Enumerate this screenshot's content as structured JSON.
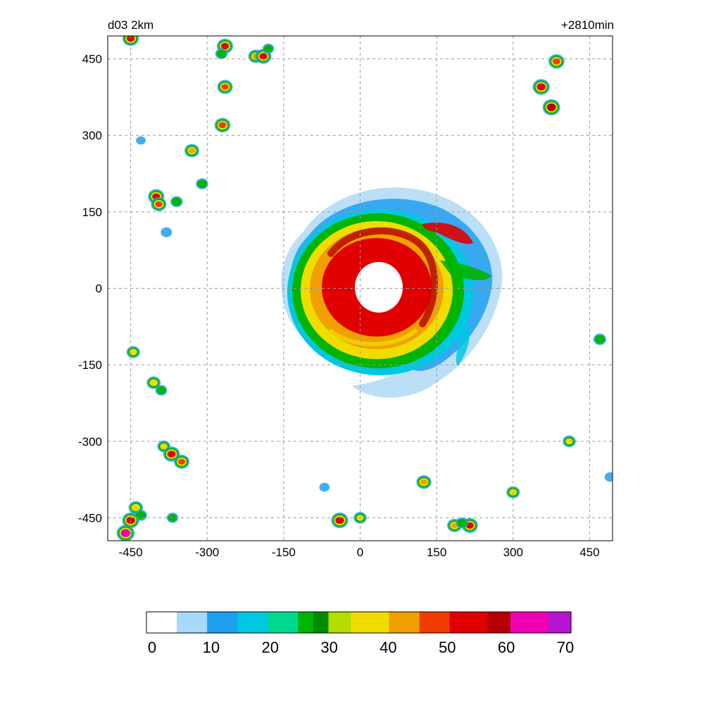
{
  "header": {
    "domain_label": "d03 2km",
    "time_label": "+2810min"
  },
  "chart_data": {
    "type": "heatmap",
    "title": "",
    "xlabel": "",
    "ylabel": "",
    "xlim": [
      -495,
      495
    ],
    "ylim": [
      -495,
      495
    ],
    "grid": true,
    "x_ticks": [
      -450,
      -300,
      -150,
      0,
      150,
      300,
      450
    ],
    "y_ticks": [
      450,
      300,
      150,
      0,
      -150,
      -300,
      -450
    ],
    "storm_center": [
      35,
      10
    ],
    "colorbar": {
      "min": 0,
      "max": 70,
      "tick_labels": [
        "0",
        "10",
        "20",
        "30",
        "40",
        "50",
        "60",
        "70"
      ],
      "stops": [
        {
          "value": 0,
          "color": "#ffffff"
        },
        {
          "value": 5,
          "color": "#a8d8f8"
        },
        {
          "value": 10,
          "color": "#1ea0f0"
        },
        {
          "value": 15,
          "color": "#00c8e0"
        },
        {
          "value": 20,
          "color": "#00d890"
        },
        {
          "value": 25,
          "color": "#00b400"
        },
        {
          "value": 27,
          "color": "#008c00"
        },
        {
          "value": 30,
          "color": "#b4dc00"
        },
        {
          "value": 34,
          "color": "#f0dc00"
        },
        {
          "value": 40,
          "color": "#f0a000"
        },
        {
          "value": 45,
          "color": "#f03c00"
        },
        {
          "value": 50,
          "color": "#e00000"
        },
        {
          "value": 56,
          "color": "#b40000"
        },
        {
          "value": 60,
          "color": "#f000b4"
        },
        {
          "value": 66,
          "color": "#b414d2"
        },
        {
          "value": 70,
          "color": "#a082f0"
        }
      ]
    },
    "cells": [
      {
        "x": -450,
        "y": -455,
        "dbz": 55
      },
      {
        "x": -440,
        "y": -430,
        "dbz": 38
      },
      {
        "x": -430,
        "y": -445,
        "dbz": 25
      },
      {
        "x": -460,
        "y": -480,
        "dbz": 60
      },
      {
        "x": -368,
        "y": -450,
        "dbz": 20
      },
      {
        "x": -385,
        "y": -310,
        "dbz": 30
      },
      {
        "x": -370,
        "y": -325,
        "dbz": 52
      },
      {
        "x": -350,
        "y": -340,
        "dbz": 45
      },
      {
        "x": -405,
        "y": -185,
        "dbz": 35
      },
      {
        "x": -390,
        "y": -200,
        "dbz": 22
      },
      {
        "x": -445,
        "y": -125,
        "dbz": 32
      },
      {
        "x": -400,
        "y": 180,
        "dbz": 50
      },
      {
        "x": -395,
        "y": 165,
        "dbz": 45
      },
      {
        "x": -380,
        "y": 110,
        "dbz": 18
      },
      {
        "x": -360,
        "y": 170,
        "dbz": 25
      },
      {
        "x": -330,
        "y": 270,
        "dbz": 40
      },
      {
        "x": -310,
        "y": 205,
        "dbz": 25
      },
      {
        "x": -270,
        "y": 320,
        "dbz": 48
      },
      {
        "x": -265,
        "y": 395,
        "dbz": 45
      },
      {
        "x": -265,
        "y": 475,
        "dbz": 50
      },
      {
        "x": -272,
        "y": 460,
        "dbz": 25
      },
      {
        "x": -205,
        "y": 455,
        "dbz": 40
      },
      {
        "x": -190,
        "y": 455,
        "dbz": 50
      },
      {
        "x": -180,
        "y": 470,
        "dbz": 20
      },
      {
        "x": -450,
        "y": 490,
        "dbz": 50
      },
      {
        "x": 355,
        "y": 395,
        "dbz": 55
      },
      {
        "x": 375,
        "y": 355,
        "dbz": 58
      },
      {
        "x": 385,
        "y": 445,
        "dbz": 48
      },
      {
        "x": 410,
        "y": -300,
        "dbz": 30
      },
      {
        "x": 470,
        "y": -100,
        "dbz": 28
      },
      {
        "x": 490,
        "y": -370,
        "dbz": 15
      },
      {
        "x": 300,
        "y": -400,
        "dbz": 32
      },
      {
        "x": 125,
        "y": -380,
        "dbz": 42
      },
      {
        "x": 185,
        "y": -465,
        "dbz": 40
      },
      {
        "x": 215,
        "y": -465,
        "dbz": 50
      },
      {
        "x": 200,
        "y": -460,
        "dbz": 25
      },
      {
        "x": -40,
        "y": -455,
        "dbz": 55
      },
      {
        "x": 0,
        "y": -450,
        "dbz": 30
      },
      {
        "x": -70,
        "y": -390,
        "dbz": 12
      },
      {
        "x": -430,
        "y": 290,
        "dbz": 8
      }
    ]
  }
}
